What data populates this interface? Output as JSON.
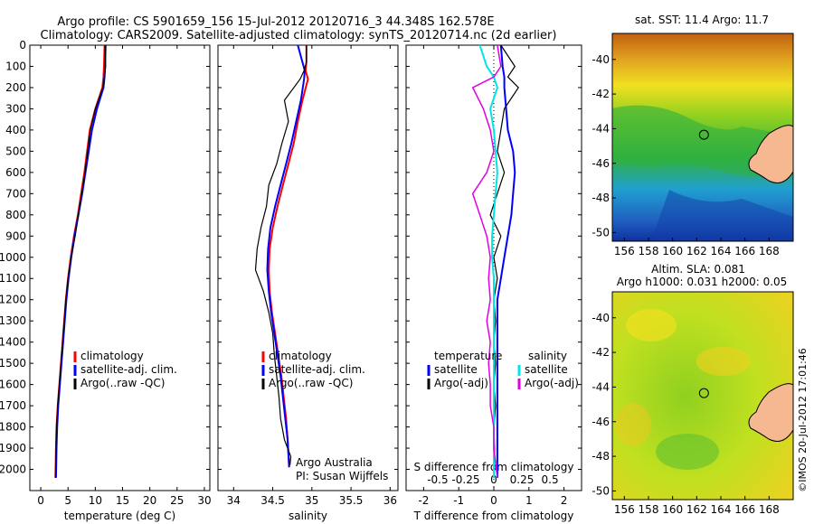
{
  "header": {
    "line1": "Argo profile: CS 5901659_156 15-Jul-2012 20120716_3 44.348S 162.578E",
    "line2": "Climatology: CARS2009. Satellite-adjusted climatology: synTS_20120714.nc (2d earlier)"
  },
  "colors": {
    "climatology": "#ff0000",
    "satellite": "#0000ff",
    "argo": "#000000",
    "sat_salinity": "#00e5e5",
    "argo_salinity": "#e000e0"
  },
  "chart_data": [
    {
      "type": "line",
      "id": "temperature",
      "xlabel": "temperature (deg C)",
      "ylim": [
        2100,
        0
      ],
      "xlim": [
        -2,
        31
      ],
      "xticks": [
        "0",
        "5",
        "10",
        "15",
        "20",
        "25",
        "30"
      ],
      "xtick_values": [
        0,
        5,
        10,
        15,
        20,
        25,
        30
      ],
      "yticks": [
        "0",
        "100",
        "200",
        "300",
        "400",
        "500",
        "600",
        "700",
        "800",
        "900",
        "1000",
        "1100",
        "1200",
        "1300",
        "1400",
        "1500",
        "1600",
        "1700",
        "1800",
        "1900",
        "2000"
      ],
      "ytick_values": [
        0,
        100,
        200,
        300,
        400,
        500,
        600,
        700,
        800,
        900,
        1000,
        1100,
        1200,
        1300,
        1400,
        1500,
        1600,
        1700,
        1800,
        1900,
        2000
      ],
      "legend": [
        "climatology",
        "satellite-adj. clim.",
        "Argo(..raw -QC)"
      ],
      "series": [
        {
          "name": "climatology",
          "color": "#ff0000",
          "width": 2,
          "x": [
            11.7,
            11.6,
            11.5,
            11.3,
            10.0,
            9.0,
            8.5,
            8.0,
            7.4,
            6.8,
            6.1,
            5.5,
            5.0,
            4.6,
            4.3,
            4.0,
            3.7,
            3.4,
            3.1,
            2.9,
            2.8,
            2.7
          ],
          "y": [
            0,
            100,
            150,
            200,
            300,
            400,
            500,
            600,
            700,
            800,
            900,
            1000,
            1100,
            1200,
            1300,
            1400,
            1500,
            1600,
            1700,
            1800,
            1900,
            2040
          ]
        },
        {
          "name": "satellite-adj. clim.",
          "color": "#0000ff",
          "width": 2,
          "x": [
            11.9,
            11.8,
            11.7,
            11.5,
            10.3,
            9.4,
            8.8,
            8.2,
            7.6,
            6.9,
            6.2,
            5.6,
            5.1,
            4.7,
            4.4,
            4.1,
            3.8,
            3.5,
            3.2,
            3.0,
            2.9,
            2.8
          ],
          "y": [
            0,
            100,
            150,
            200,
            300,
            400,
            500,
            600,
            700,
            800,
            900,
            1000,
            1100,
            1200,
            1300,
            1400,
            1500,
            1600,
            1700,
            1800,
            1900,
            2040
          ]
        },
        {
          "name": "Argo(..raw -QC)",
          "color": "#000000",
          "width": 1.2,
          "x": [
            11.8,
            11.9,
            11.7,
            11.4,
            10.0,
            9.1,
            8.6,
            8.1,
            7.5,
            6.9,
            6.3,
            5.6,
            5.0,
            4.6,
            4.3,
            4.0,
            3.7,
            3.4,
            3.1,
            2.9,
            2.8,
            2.7
          ],
          "y": [
            0,
            100,
            150,
            200,
            300,
            400,
            500,
            600,
            700,
            800,
            900,
            1000,
            1100,
            1200,
            1300,
            1400,
            1500,
            1600,
            1700,
            1800,
            1900,
            2040
          ]
        }
      ]
    },
    {
      "type": "line",
      "id": "salinity",
      "xlabel": "salinity",
      "ylim": [
        2100,
        0
      ],
      "xlim": [
        33.8,
        36.1
      ],
      "xticks": [
        "34",
        "34.5",
        "35",
        "35.5",
        "36"
      ],
      "xtick_values": [
        34,
        34.5,
        35,
        35.5,
        36
      ],
      "legend": [
        "climatology",
        "satellite-adj. clim.",
        "Argo(..raw -QC)"
      ],
      "annotation": [
        "Argo Australia",
        "PI: Susan Wijffels"
      ],
      "series": [
        {
          "name": "climatology",
          "color": "#ff0000",
          "width": 2,
          "x": [
            34.93,
            34.93,
            34.92,
            34.95,
            34.88,
            34.82,
            34.77,
            34.7,
            34.63,
            34.56,
            34.5,
            34.46,
            34.45,
            34.46,
            34.49,
            34.53,
            34.57,
            34.61,
            34.64,
            34.67,
            34.69,
            34.71
          ],
          "y": [
            0,
            80,
            120,
            160,
            260,
            360,
            460,
            560,
            660,
            760,
            860,
            960,
            1060,
            1160,
            1260,
            1360,
            1460,
            1560,
            1660,
            1760,
            1860,
            1990
          ]
        },
        {
          "name": "satellite-adj. clim.",
          "color": "#0000ff",
          "width": 2,
          "x": [
            34.82,
            34.88,
            34.91,
            34.9,
            34.86,
            34.8,
            34.74,
            34.67,
            34.6,
            34.53,
            34.47,
            34.44,
            34.43,
            34.45,
            34.48,
            34.52,
            34.56,
            34.6,
            34.63,
            34.66,
            34.69,
            34.71
          ],
          "y": [
            0,
            80,
            120,
            160,
            260,
            360,
            460,
            560,
            660,
            760,
            860,
            960,
            1060,
            1160,
            1260,
            1360,
            1460,
            1560,
            1660,
            1760,
            1860,
            1990
          ]
        },
        {
          "name": "Argo(..raw -QC)",
          "color": "#000000",
          "width": 1.2,
          "x": [
            34.93,
            34.93,
            34.9,
            34.85,
            34.65,
            34.7,
            34.62,
            34.55,
            34.45,
            34.42,
            34.35,
            34.3,
            34.28,
            34.38,
            34.45,
            34.5,
            34.52,
            34.55,
            34.58,
            34.6,
            34.65,
            34.73,
            34.72
          ],
          "y": [
            0,
            80,
            120,
            160,
            260,
            360,
            460,
            560,
            660,
            760,
            860,
            960,
            1060,
            1160,
            1260,
            1360,
            1460,
            1560,
            1660,
            1760,
            1860,
            1940,
            1980
          ]
        }
      ]
    },
    {
      "type": "line",
      "id": "differences",
      "xlabel": "T difference from climatology",
      "xlabel2": "S difference from climatology",
      "ylim": [
        2100,
        0
      ],
      "xlim": [
        -2.5,
        2.5
      ],
      "xticks": [
        "-2",
        "-1",
        "0",
        "1",
        "2"
      ],
      "xtick_values": [
        -2,
        -1,
        0,
        1,
        2
      ],
      "xticks2": [
        "-0.5",
        "-0.25",
        "0",
        "0.25",
        "0.5"
      ],
      "xtick2_values": [
        -1.6,
        -0.8,
        0,
        0.8,
        1.6
      ],
      "legend_headers": [
        "temperature",
        "salinity"
      ],
      "legend": [
        "satellite",
        "Argo(-adj)",
        "satellite",
        "Argo(-adj)"
      ],
      "series": [
        {
          "name": "satellite",
          "color": "#0000ff",
          "width": 2,
          "x": [
            0.2,
            0.25,
            0.3,
            0.3,
            0.35,
            0.4,
            0.55,
            0.6,
            0.55,
            0.5,
            0.4,
            0.3,
            0.2,
            0.1,
            0.1,
            0.1,
            0.1,
            0.1,
            0.1,
            0.1,
            0.1,
            0.1
          ],
          "y": [
            0,
            100,
            150,
            200,
            300,
            400,
            500,
            600,
            700,
            800,
            900,
            1000,
            1100,
            1200,
            1300,
            1400,
            1500,
            1600,
            1700,
            1800,
            1900,
            2040
          ]
        },
        {
          "name": "Argo(-adj)",
          "color": "#000000",
          "width": 1.2,
          "x": [
            0.2,
            0.6,
            0.4,
            0.7,
            0.3,
            0.2,
            0.1,
            0.3,
            0.1,
            -0.1,
            0.2,
            0.0,
            0.1,
            0.0,
            0.05,
            0.0,
            0.05,
            0.0,
            0.05,
            0.0,
            0.02,
            0.0
          ],
          "y": [
            0,
            100,
            150,
            200,
            300,
            400,
            500,
            600,
            700,
            800,
            900,
            1000,
            1100,
            1200,
            1300,
            1400,
            1500,
            1600,
            1700,
            1800,
            1900,
            2040
          ]
        },
        {
          "name": "satellite",
          "color": "#00e5e5",
          "width": 2,
          "x": [
            -0.4,
            -0.2,
            0.0,
            0.1,
            -0.1,
            0.0,
            0.05,
            0.1,
            0.05,
            0.0,
            -0.05,
            -0.05,
            0.0,
            0.0,
            0.0,
            0.0,
            0.0,
            0.0,
            0.0,
            0.0,
            0.0,
            0.0
          ],
          "y": [
            0,
            100,
            150,
            200,
            300,
            400,
            500,
            600,
            700,
            800,
            900,
            1000,
            1100,
            1200,
            1300,
            1400,
            1500,
            1600,
            1700,
            1800,
            1900,
            2040
          ]
        },
        {
          "name": "Argo(-adj)",
          "color": "#e000e0",
          "width": 1.5,
          "x": [
            0.1,
            0.2,
            0.0,
            -0.6,
            -0.3,
            -0.1,
            0.0,
            -0.2,
            -0.6,
            -0.4,
            -0.2,
            -0.1,
            -0.15,
            -0.1,
            -0.2,
            -0.1,
            -0.15,
            -0.1,
            -0.1,
            0.0,
            0.0,
            0.1
          ],
          "y": [
            0,
            100,
            150,
            200,
            300,
            400,
            500,
            600,
            700,
            800,
            900,
            1000,
            1100,
            1200,
            1300,
            1400,
            1500,
            1600,
            1700,
            1800,
            1900,
            2040
          ]
        }
      ]
    },
    {
      "type": "heatmap",
      "id": "sst-map",
      "title": "sat. SST: 11.4  Argo: 11.7",
      "xlim": [
        155,
        170
      ],
      "ylim": [
        -50.5,
        -38.5
      ],
      "xticks": [
        "156",
        "158",
        "160",
        "162",
        "164",
        "166",
        "168"
      ],
      "xtick_values": [
        156,
        158,
        160,
        162,
        164,
        166,
        168
      ],
      "yticks": [
        "-40",
        "-42",
        "-44",
        "-46",
        "-48",
        "-50"
      ],
      "ytick_values": [
        -40,
        -42,
        -44,
        -46,
        -48,
        -50
      ],
      "float_position": [
        162.6,
        -44.35
      ]
    },
    {
      "type": "heatmap",
      "id": "sla-map",
      "title": "Altim. SLA: 0.081",
      "subtitle": "Argo h1000: 0.031  h2000: 0.05",
      "xlim": [
        155,
        170
      ],
      "ylim": [
        -50.5,
        -38.5
      ],
      "xticks": [
        "156",
        "158",
        "160",
        "162",
        "164",
        "166",
        "168"
      ],
      "xtick_values": [
        156,
        158,
        160,
        162,
        164,
        166,
        168
      ],
      "yticks": [
        "-40",
        "-42",
        "-44",
        "-46",
        "-48",
        "-50"
      ],
      "ytick_values": [
        -40,
        -42,
        -44,
        -46,
        -48,
        -50
      ],
      "float_position": [
        162.6,
        -44.35
      ]
    }
  ],
  "footer": {
    "stamp": "©IMOS 20-Jul-2012 17:01:46"
  }
}
